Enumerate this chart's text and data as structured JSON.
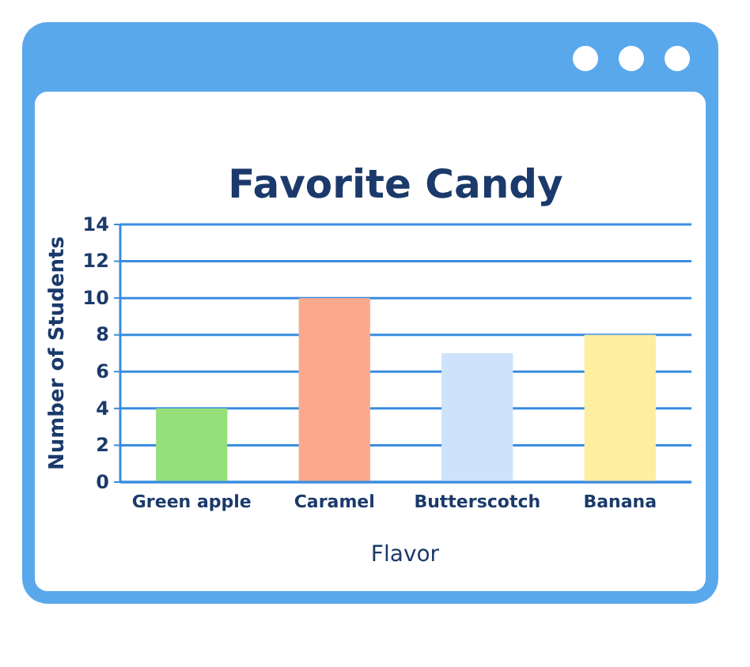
{
  "chart_data": {
    "type": "bar",
    "title": "Favorite Candy",
    "xlabel": "Flavor",
    "ylabel": "Number of Students",
    "categories": [
      "Green apple",
      "Caramel",
      "Butterscotch",
      "Banana"
    ],
    "values": [
      4,
      10,
      7,
      8
    ],
    "colors": [
      "#95e07a",
      "#fba98c",
      "#cde3fb",
      "#fdeea0"
    ],
    "ylim": [
      0,
      14
    ],
    "yticks": [
      0,
      2,
      4,
      6,
      8,
      10,
      12,
      14
    ],
    "grid": "y"
  }
}
